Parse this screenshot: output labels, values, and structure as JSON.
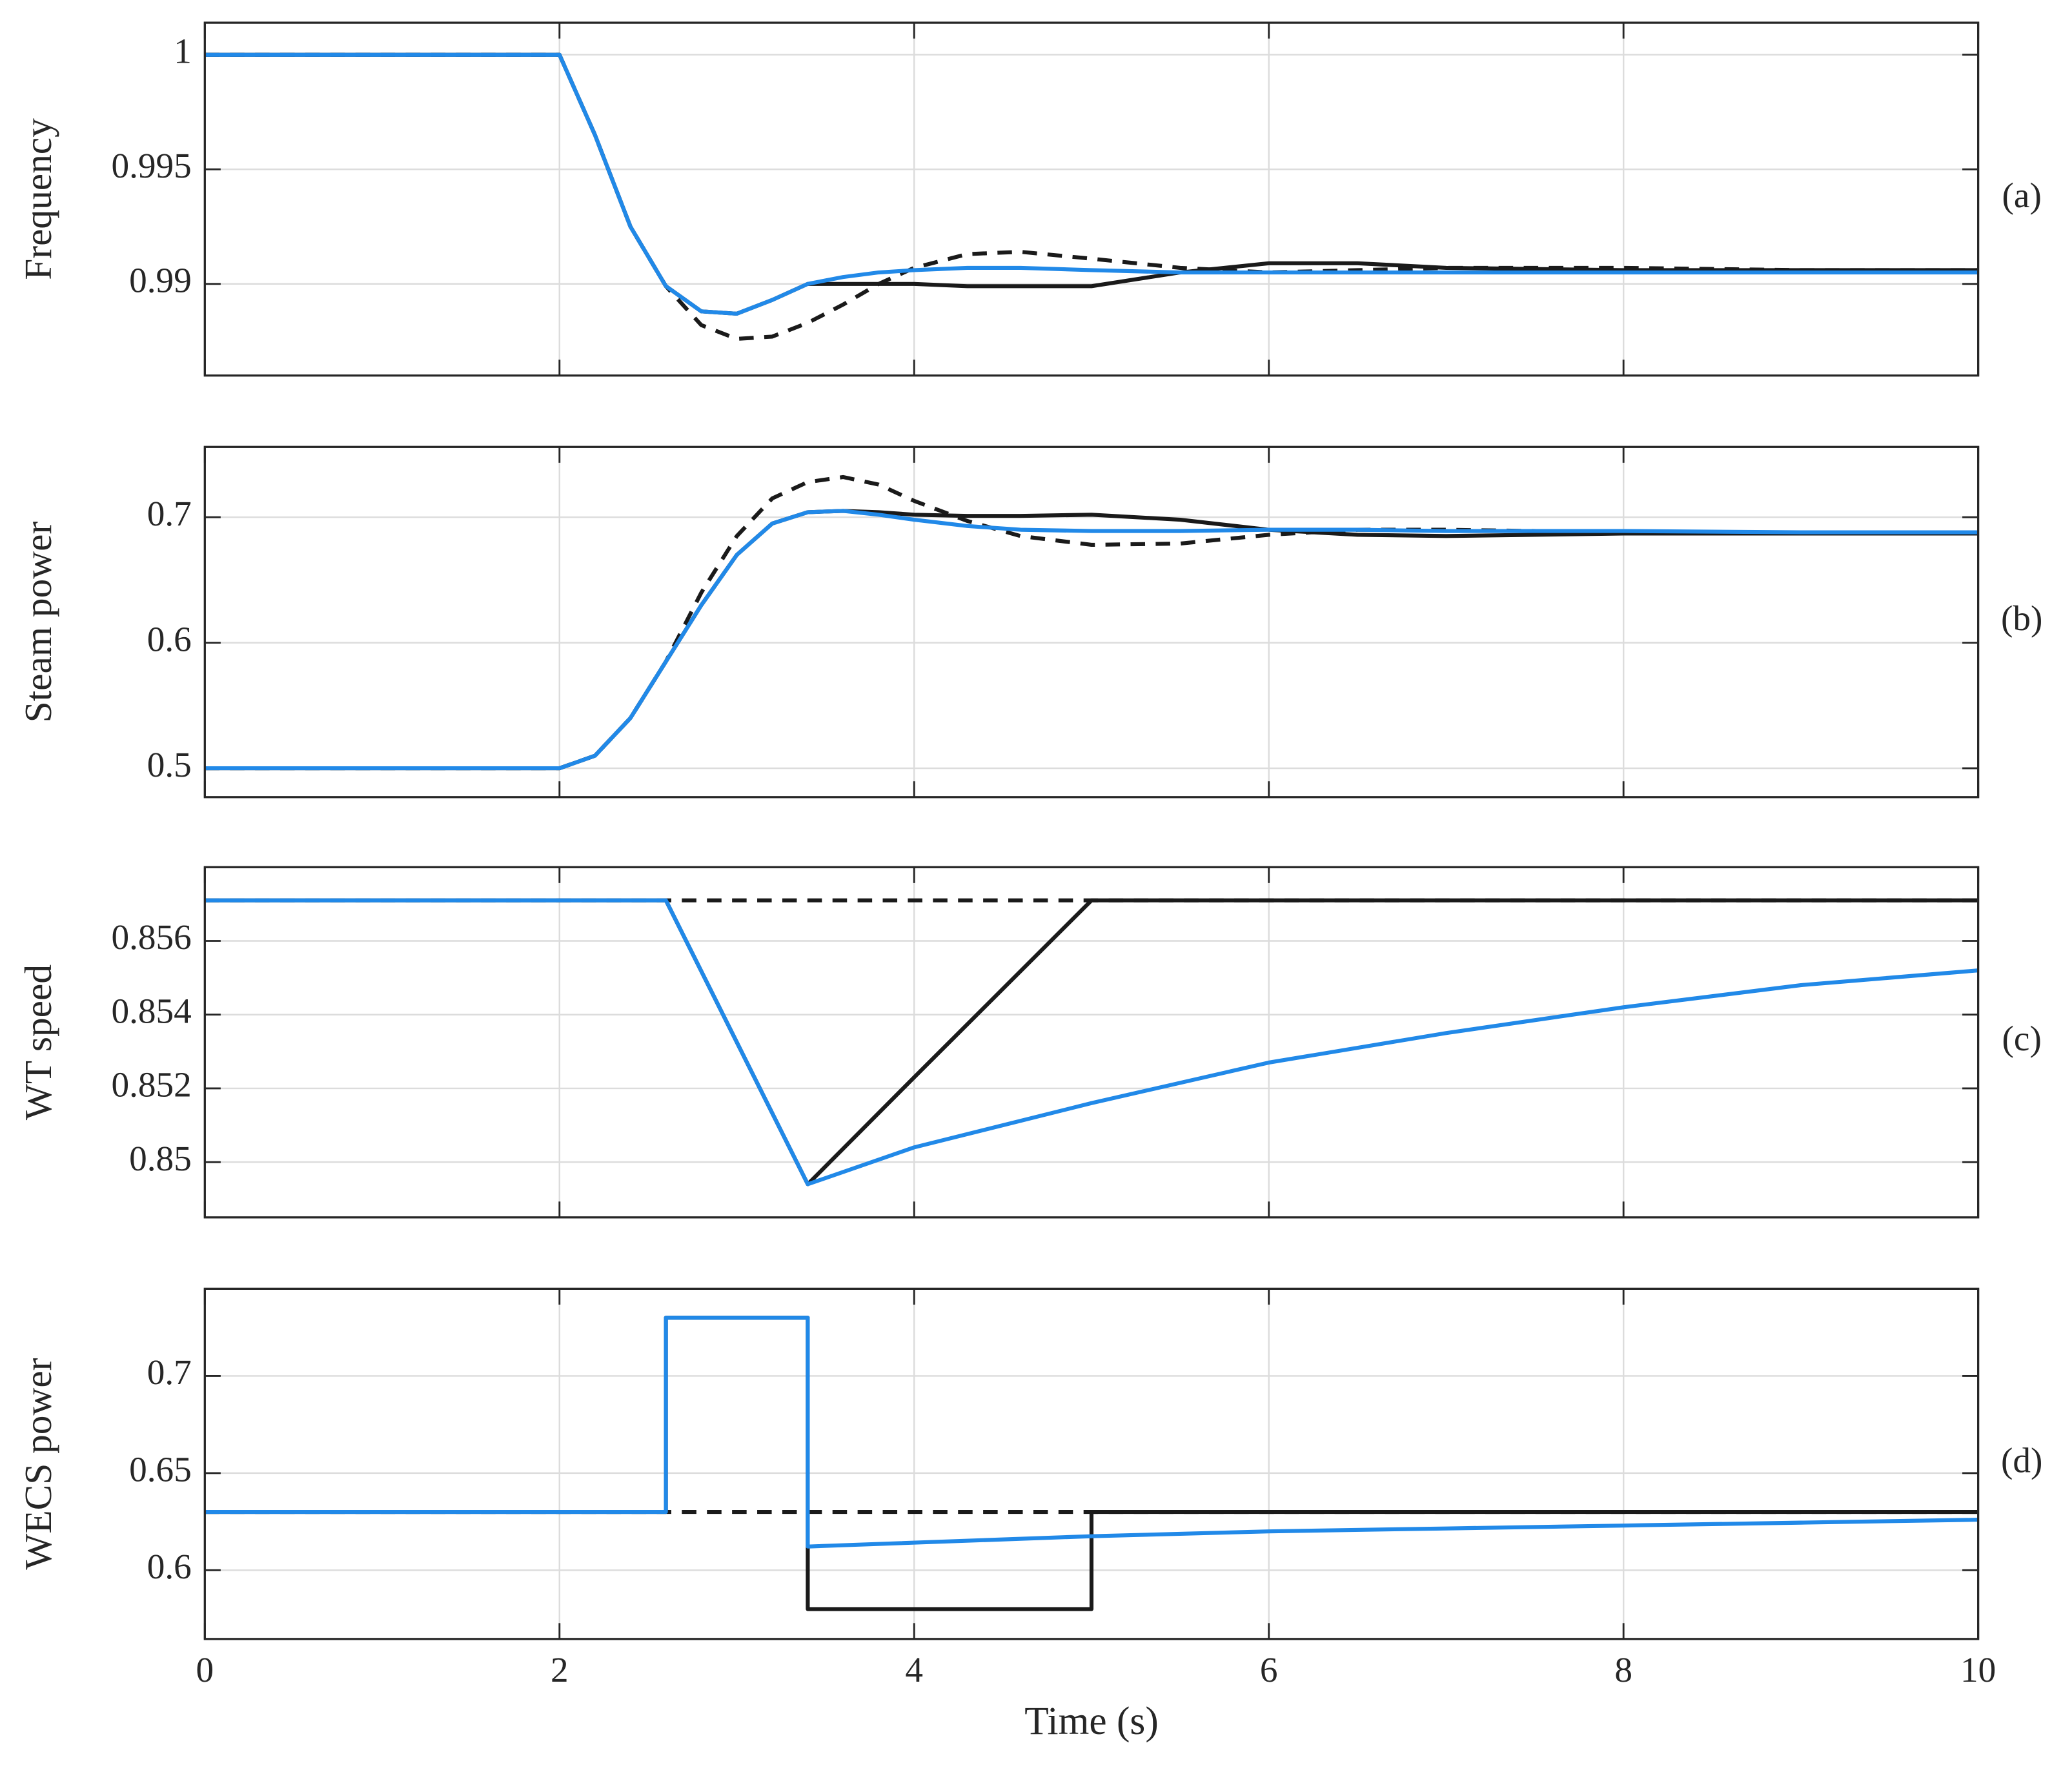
{
  "chart_data": [
    {
      "type": "line",
      "ylabel": "Frequency",
      "annotation": "(a)",
      "x": [
        0,
        2,
        2.2,
        2.4,
        2.6,
        2.8,
        3,
        3.2,
        3.4,
        3.6,
        3.8,
        4,
        4.3,
        4.6,
        5,
        5.5,
        6,
        6.5,
        7,
        8,
        9,
        10
      ],
      "xlim": [
        0,
        10
      ],
      "xticks": [
        0,
        2,
        4,
        6,
        8,
        10
      ],
      "ylim": [
        0.986,
        1.0014
      ],
      "yticks": [
        0.99,
        0.995,
        1
      ],
      "grid": true,
      "series": [
        {
          "color": "#1a1a1a",
          "dash": false,
          "values": [
            1,
            1,
            0.9965,
            0.9925,
            0.9899,
            0.9888,
            0.9887,
            0.9893,
            0.99,
            0.99,
            0.99,
            0.99,
            0.9899,
            0.9899,
            0.9899,
            0.9905,
            0.9909,
            0.9909,
            0.9907,
            0.9906,
            0.9906,
            0.9906
          ]
        },
        {
          "color": "#1a1a1a",
          "dash": true,
          "values": [
            1,
            1,
            0.9965,
            0.9925,
            0.9899,
            0.9882,
            0.9876,
            0.9877,
            0.9883,
            0.9891,
            0.99,
            0.9907,
            0.9913,
            0.9914,
            0.9911,
            0.9907,
            0.9905,
            0.9906,
            0.9907,
            0.9907,
            0.9906,
            0.9906
          ]
        },
        {
          "color": "#2189e8",
          "dash": false,
          "values": [
            1,
            1,
            0.9965,
            0.9925,
            0.9899,
            0.9888,
            0.9887,
            0.9893,
            0.99,
            0.9903,
            0.9905,
            0.9906,
            0.9907,
            0.9907,
            0.9906,
            0.9905,
            0.9905,
            0.9905,
            0.9905,
            0.9905,
            0.9905,
            0.9905
          ]
        }
      ]
    },
    {
      "type": "line",
      "ylabel": "Steam power",
      "annotation": "(b)",
      "x": [
        0,
        2,
        2.2,
        2.4,
        2.6,
        2.8,
        3,
        3.2,
        3.4,
        3.6,
        3.8,
        4,
        4.3,
        4.6,
        5,
        5.5,
        6,
        6.5,
        7,
        8,
        9,
        10
      ],
      "xlim": [
        0,
        10
      ],
      "xticks": [
        0,
        2,
        4,
        6,
        8,
        10
      ],
      "ylim": [
        0.477,
        0.756
      ],
      "yticks": [
        0.5,
        0.6,
        0.7
      ],
      "grid": true,
      "series": [
        {
          "color": "#1a1a1a",
          "dash": false,
          "values": [
            0.5,
            0.5,
            0.51,
            0.54,
            0.585,
            0.63,
            0.67,
            0.695,
            0.704,
            0.705,
            0.704,
            0.702,
            0.701,
            0.701,
            0.702,
            0.698,
            0.69,
            0.686,
            0.685,
            0.687,
            0.687,
            0.687
          ]
        },
        {
          "color": "#1a1a1a",
          "dash": true,
          "values": [
            0.5,
            0.5,
            0.51,
            0.54,
            0.585,
            0.64,
            0.685,
            0.715,
            0.728,
            0.732,
            0.726,
            0.713,
            0.697,
            0.685,
            0.678,
            0.679,
            0.686,
            0.69,
            0.69,
            0.688,
            0.687,
            0.687
          ]
        },
        {
          "color": "#2189e8",
          "dash": false,
          "values": [
            0.5,
            0.5,
            0.51,
            0.54,
            0.585,
            0.63,
            0.67,
            0.695,
            0.704,
            0.705,
            0.702,
            0.698,
            0.693,
            0.69,
            0.689,
            0.689,
            0.69,
            0.69,
            0.689,
            0.689,
            0.688,
            0.688
          ]
        }
      ]
    },
    {
      "type": "line",
      "ylabel": "WT speed",
      "annotation": "(c)",
      "x": [
        0,
        2.6,
        3.4,
        4,
        5,
        6,
        7,
        8,
        9,
        10
      ],
      "xlim": [
        0,
        10
      ],
      "xticks": [
        0,
        2,
        4,
        6,
        8,
        10
      ],
      "ylim": [
        0.8485,
        0.858
      ],
      "yticks": [
        0.85,
        0.852,
        0.854,
        0.856
      ],
      "grid": true,
      "series": [
        {
          "color": "#1a1a1a",
          "dash": false,
          "values": [
            0.8571,
            0.8571,
            0.8494,
            0.8523,
            0.8571,
            0.8571,
            0.8571,
            0.8571,
            0.8571,
            0.8571
          ]
        },
        {
          "color": "#1a1a1a",
          "dash": true,
          "values": [
            0.8571,
            0.8571,
            0.8571,
            0.8571,
            0.8571,
            0.8571,
            0.8571,
            0.8571,
            0.8571,
            0.8571
          ]
        },
        {
          "color": "#2189e8",
          "dash": false,
          "values": [
            0.8571,
            0.8571,
            0.8494,
            0.8504,
            0.8516,
            0.8527,
            0.8535,
            0.8542,
            0.8548,
            0.8552
          ]
        }
      ]
    },
    {
      "type": "line",
      "ylabel": "WECS power",
      "annotation": "(d)",
      "xlabel": "Time (s)",
      "x": [
        0,
        2.6,
        2.6,
        3.4,
        3.4,
        5,
        5,
        6,
        7,
        8,
        9,
        10
      ],
      "xlim": [
        0,
        10
      ],
      "xticks": [
        0,
        2,
        4,
        6,
        8,
        10
      ],
      "ylim": [
        0.5646,
        0.7449
      ],
      "yticks": [
        0.6,
        0.65,
        0.7
      ],
      "grid": true,
      "series": [
        {
          "color": "#1a1a1a",
          "dash": false,
          "values": [
            0.63,
            0.63,
            0.73,
            0.73,
            0.58,
            0.58,
            0.63,
            0.63,
            0.63,
            0.63,
            0.63,
            0.63
          ]
        },
        {
          "color": "#1a1a1a",
          "dash": true,
          "values": [
            0.63,
            0.63,
            0.63,
            0.63,
            0.63,
            0.63,
            0.63,
            0.63,
            0.63,
            0.63,
            0.63,
            0.63
          ]
        },
        {
          "color": "#2189e8",
          "dash": false,
          "values": [
            0.63,
            0.63,
            0.73,
            0.73,
            0.6122,
            0.6175,
            0.6175,
            0.62,
            0.6215,
            0.623,
            0.6245,
            0.626
          ]
        }
      ]
    }
  ]
}
